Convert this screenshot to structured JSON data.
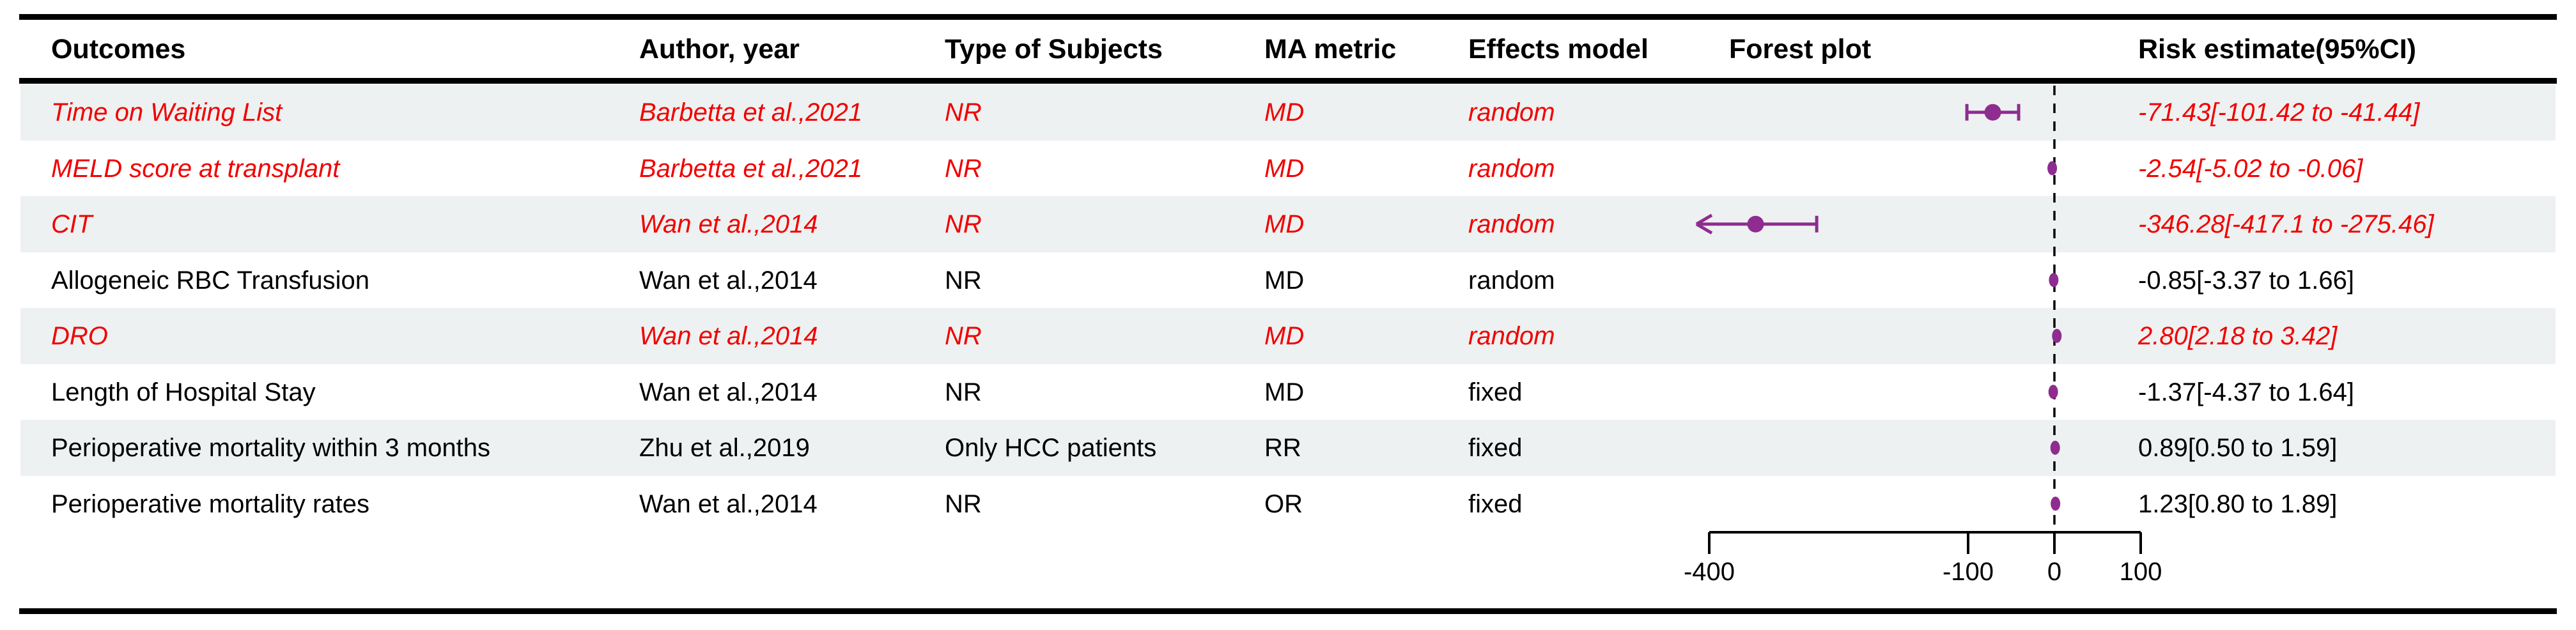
{
  "table": {
    "columns": [
      {
        "id": "outcome",
        "label": "Outcomes"
      },
      {
        "id": "author",
        "label": "Author, year"
      },
      {
        "id": "subjects",
        "label": "Type of Subjects"
      },
      {
        "id": "metric",
        "label": "MA metric"
      },
      {
        "id": "model",
        "label": "Effects model"
      },
      {
        "id": "forest",
        "label": "Forest plot"
      },
      {
        "id": "risk",
        "label": "Risk estimate(95%CI)"
      }
    ],
    "rows": [
      {
        "outcome": "Time on Waiting List",
        "author": "Barbetta et al.,2021",
        "subjects": "NR",
        "metric": "MD",
        "model": "random",
        "risk": "-71.43[-101.42 to -41.44]",
        "highlighted": true,
        "shaded": true
      },
      {
        "outcome": "MELD score at transplant",
        "author": "Barbetta et al.,2021",
        "subjects": "NR",
        "metric": "MD",
        "model": "random",
        "risk": "-2.54[-5.02 to -0.06]",
        "highlighted": true,
        "shaded": false
      },
      {
        "outcome": "CIT",
        "author": "Wan et al.,2014",
        "subjects": "NR",
        "metric": "MD",
        "model": "random",
        "risk": "-346.28[-417.1 to -275.46]",
        "highlighted": true,
        "shaded": true
      },
      {
        "outcome": "Allogeneic RBC Transfusion",
        "author": "Wan et al.,2014",
        "subjects": "NR",
        "metric": "MD",
        "model": "random",
        "risk": "-0.85[-3.37 to 1.66]",
        "highlighted": false,
        "shaded": false
      },
      {
        "outcome": "DRO",
        "author": "Wan et al.,2014",
        "subjects": "NR",
        "metric": "MD",
        "model": "random",
        "risk": "2.80[2.18 to 3.42]",
        "highlighted": true,
        "shaded": true
      },
      {
        "outcome": "Length of Hospital Stay",
        "author": "Wan et al.,2014",
        "subjects": "NR",
        "metric": "MD",
        "model": "fixed",
        "risk": "-1.37[-4.37 to 1.64]",
        "highlighted": false,
        "shaded": false
      },
      {
        "outcome": "Perioperative mortality within 3 months",
        "author": "Zhu et al.,2019",
        "subjects": "Only HCC patients",
        "metric": "RR",
        "model": "fixed",
        "risk": "0.89[0.50 to 1.59]",
        "highlighted": false,
        "shaded": true
      },
      {
        "outcome": "Perioperative mortality rates",
        "author": "Wan et al.,2014",
        "subjects": "NR",
        "metric": "OR",
        "model": "fixed",
        "risk": "1.23[0.80 to 1.89]",
        "highlighted": false,
        "shaded": false
      }
    ]
  },
  "chart_data": {
    "type": "scatter",
    "variant": "forest-plot",
    "title": "",
    "xlabel": "",
    "xlim": [
      -400,
      100
    ],
    "axis_ticks": [
      -400,
      -100,
      0,
      100
    ],
    "tick_labels": [
      "-400",
      "-100",
      "0",
      "100"
    ],
    "reference_line": 0,
    "grid": false,
    "points": [
      {
        "label": "Time on Waiting List",
        "estimate": -71.43,
        "ci_low": -101.42,
        "ci_high": -41.44
      },
      {
        "label": "MELD score at transplant",
        "estimate": -2.54,
        "ci_low": -5.02,
        "ci_high": -0.06
      },
      {
        "label": "CIT",
        "estimate": -346.28,
        "ci_low": -417.1,
        "ci_high": -275.46
      },
      {
        "label": "Allogeneic RBC Transfusion",
        "estimate": -0.85,
        "ci_low": -3.37,
        "ci_high": 1.66
      },
      {
        "label": "DRO",
        "estimate": 2.8,
        "ci_low": 2.18,
        "ci_high": 3.42
      },
      {
        "label": "Length of Hospital Stay",
        "estimate": -1.37,
        "ci_low": -4.37,
        "ci_high": 1.64
      },
      {
        "label": "Perioperative mortality within 3 months",
        "estimate": 0.89,
        "ci_low": 0.5,
        "ci_high": 1.59
      },
      {
        "label": "Perioperative mortality rates",
        "estimate": 1.23,
        "ci_low": 0.8,
        "ci_high": 1.89
      }
    ]
  },
  "colors": {
    "highlight_text": "#f20000",
    "marker": "#8e2c90",
    "row_shade": "#edf1f1",
    "text": "#000000",
    "rule": "#000000"
  }
}
